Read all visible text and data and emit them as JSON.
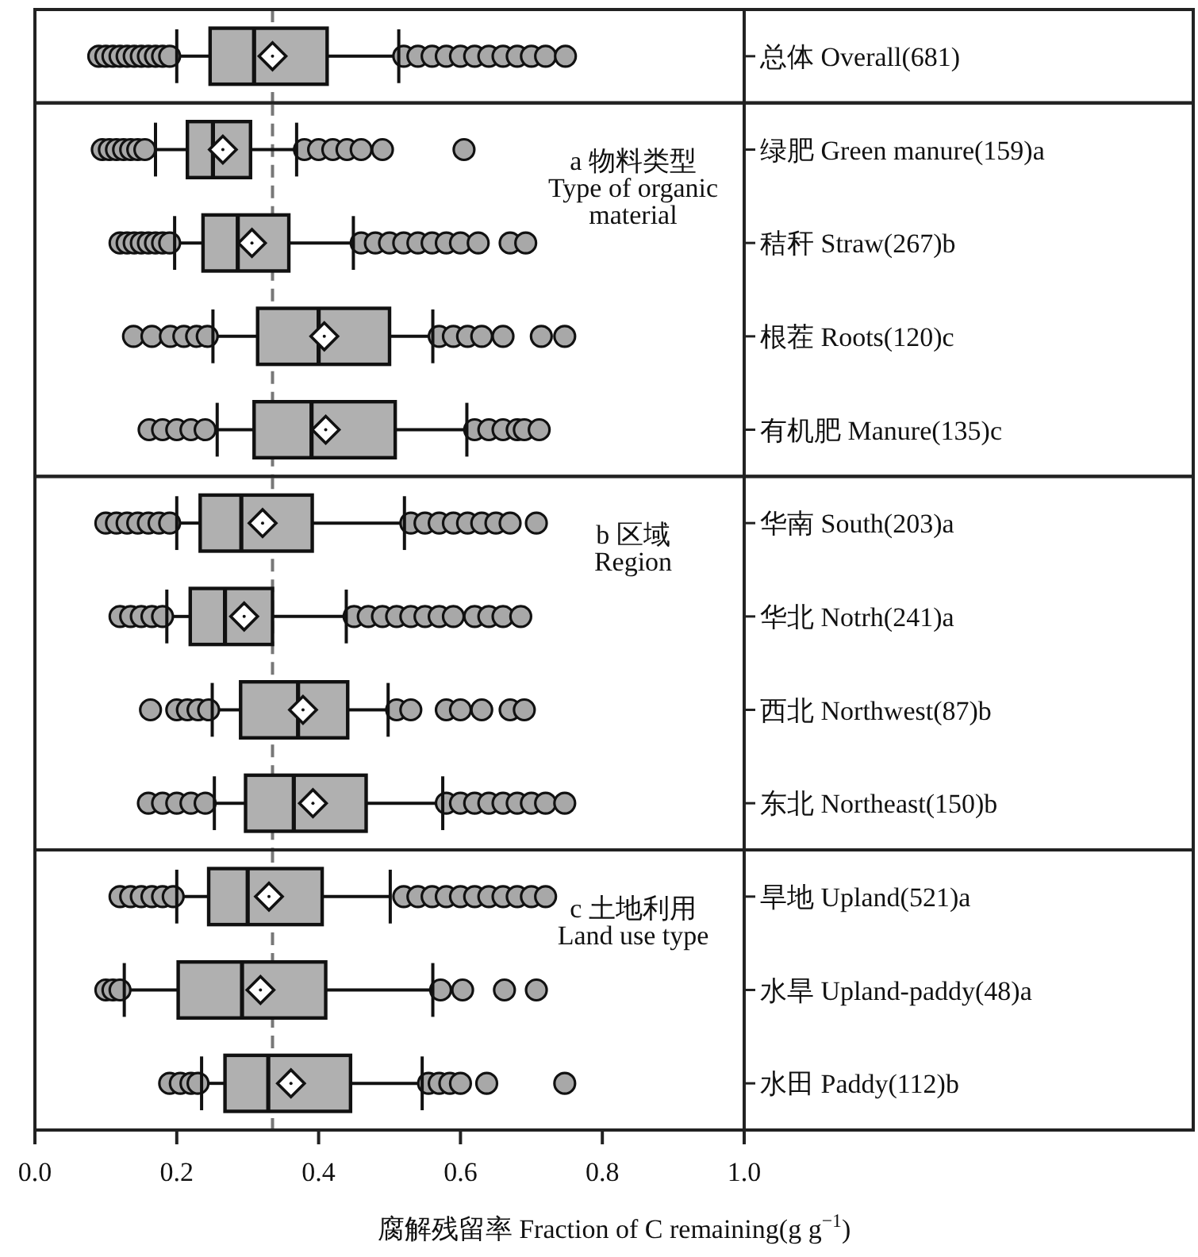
{
  "chart_data": [
    {
      "type": "box",
      "orientation": "horizontal",
      "categories": [
        "总体 Overall(681)"
      ],
      "xlim": [
        0,
        1
      ],
      "tick_labels": "y",
      "ref_lines": [
        {
          "axis": "x",
          "value": 0.335,
          "color": "#777777",
          "line_style": "dashed"
        }
      ],
      "series": [
        {
          "color": "#b0b0b0",
          "boxes": [
            {
              "low": 0.2,
              "q1": 0.247,
              "median": 0.309,
              "q3": 0.412,
              "high": 0.513,
              "mean": 0.335,
              "outliers": [
                0.09,
                0.1,
                0.11,
                0.12,
                0.13,
                0.14,
                0.15,
                0.16,
                0.17,
                0.18,
                0.19,
                0.52,
                0.54,
                0.56,
                0.58,
                0.6,
                0.62,
                0.64,
                0.66,
                0.68,
                0.7,
                0.72,
                0.748
              ]
            }
          ]
        }
      ]
    },
    {
      "type": "box",
      "orientation": "horizontal",
      "categories": [
        "绿肥 Green manure(159)a",
        "秸秆 Straw(267)b",
        "根茬 Roots(120)c",
        "有机肥 Manure(135)c"
      ],
      "xlim": [
        0,
        1
      ],
      "tick_labels": "y",
      "ref_lines": [
        {
          "axis": "x",
          "value": 0.335,
          "color": "#777777",
          "line_style": "dashed"
        }
      ],
      "annotations": [
        "a 物料类型\nType of organic\nmaterial"
      ],
      "series": [
        {
          "color": "#b0b0b0",
          "boxes": [
            {
              "low": 0.17,
              "q1": 0.215,
              "median": 0.251,
              "q3": 0.304,
              "high": 0.369,
              "mean": 0.265,
              "outliers": [
                0.095,
                0.105,
                0.115,
                0.125,
                0.135,
                0.145,
                0.155,
                0.38,
                0.4,
                0.42,
                0.44,
                0.46,
                0.49,
                0.605
              ]
            },
            {
              "low": 0.197,
              "q1": 0.237,
              "median": 0.286,
              "q3": 0.358,
              "high": 0.449,
              "mean": 0.306,
              "outliers": [
                0.12,
                0.13,
                0.14,
                0.15,
                0.16,
                0.17,
                0.18,
                0.19,
                0.46,
                0.48,
                0.5,
                0.52,
                0.54,
                0.56,
                0.58,
                0.6,
                0.625,
                0.67,
                0.692
              ]
            },
            {
              "low": 0.251,
              "q1": 0.314,
              "median": 0.4,
              "q3": 0.5,
              "high": 0.561,
              "mean": 0.408,
              "outliers": [
                0.139,
                0.165,
                0.191,
                0.21,
                0.228,
                0.243,
                0.57,
                0.59,
                0.61,
                0.63,
                0.66,
                0.714,
                0.747
              ]
            },
            {
              "low": 0.257,
              "q1": 0.309,
              "median": 0.39,
              "q3": 0.508,
              "high": 0.609,
              "mean": 0.41,
              "outliers": [
                0.161,
                0.18,
                0.2,
                0.22,
                0.24,
                0.62,
                0.64,
                0.66,
                0.68,
                0.69,
                0.711
              ]
            }
          ]
        }
      ]
    },
    {
      "type": "box",
      "orientation": "horizontal",
      "categories": [
        "华南 South(203)a",
        "华北 Notrh(241)a",
        "西北 Northwest(87)b",
        "东北 Northeast(150)b"
      ],
      "xlim": [
        0,
        1
      ],
      "tick_labels": "y",
      "ref_lines": [
        {
          "axis": "x",
          "value": 0.335,
          "color": "#777777",
          "line_style": "dashed"
        }
      ],
      "annotations": [
        "b 区域\nRegion"
      ],
      "series": [
        {
          "color": "#b0b0b0",
          "boxes": [
            {
              "low": 0.2,
              "q1": 0.233,
              "median": 0.291,
              "q3": 0.391,
              "high": 0.521,
              "mean": 0.321,
              "outliers": [
                0.1,
                0.115,
                0.13,
                0.145,
                0.16,
                0.175,
                0.19,
                0.53,
                0.55,
                0.57,
                0.59,
                0.61,
                0.63,
                0.65,
                0.67,
                0.707
              ]
            },
            {
              "low": 0.186,
              "q1": 0.219,
              "median": 0.268,
              "q3": 0.335,
              "high": 0.439,
              "mean": 0.295,
              "outliers": [
                0.12,
                0.135,
                0.15,
                0.165,
                0.18,
                0.45,
                0.47,
                0.49,
                0.51,
                0.53,
                0.55,
                0.57,
                0.59,
                0.62,
                0.64,
                0.66,
                0.685
              ]
            },
            {
              "low": 0.25,
              "q1": 0.29,
              "median": 0.371,
              "q3": 0.441,
              "high": 0.498,
              "mean": 0.378,
              "outliers": [
                0.163,
                0.2,
                0.215,
                0.23,
                0.245,
                0.51,
                0.53,
                0.58,
                0.6,
                0.63,
                0.67,
                0.69
              ]
            },
            {
              "low": 0.253,
              "q1": 0.297,
              "median": 0.365,
              "q3": 0.467,
              "high": 0.575,
              "mean": 0.392,
              "outliers": [
                0.16,
                0.18,
                0.2,
                0.22,
                0.24,
                0.58,
                0.6,
                0.62,
                0.64,
                0.66,
                0.68,
                0.7,
                0.72,
                0.747
              ]
            }
          ]
        }
      ]
    },
    {
      "type": "box",
      "orientation": "horizontal",
      "categories": [
        "旱地 Upland(521)a",
        "水旱 Upland-paddy(48)a",
        "水田 Paddy(112)b"
      ],
      "xlim": [
        0,
        1
      ],
      "xticks": [
        {
          "value": 0,
          "label": "0.0"
        },
        {
          "value": 0.2,
          "label": "0.2"
        },
        {
          "value": 0.4,
          "label": "0.4"
        },
        {
          "value": 0.6,
          "label": "0.6"
        },
        {
          "value": 0.8,
          "label": "0.8"
        },
        {
          "value": 1,
          "label": "1.0"
        }
      ],
      "xlabel": "腐解残留率 Fraction of C remaining(g g$^{−1}$)",
      "ref_lines": [
        {
          "axis": "x",
          "value": 0.335,
          "color": "#777777",
          "line_style": "dashed"
        }
      ],
      "annotations": [
        "c 土地利用\nLand use type"
      ],
      "series": [
        {
          "color": "#b0b0b0",
          "boxes": [
            {
              "low": 0.2,
              "q1": 0.245,
              "median": 0.3,
              "q3": 0.405,
              "high": 0.501,
              "mean": 0.33,
              "outliers": [
                0.12,
                0.135,
                0.15,
                0.165,
                0.18,
                0.195,
                0.52,
                0.54,
                0.56,
                0.58,
                0.6,
                0.62,
                0.64,
                0.66,
                0.68,
                0.7,
                0.72
              ]
            },
            {
              "low": 0.126,
              "q1": 0.202,
              "median": 0.292,
              "q3": 0.41,
              "high": 0.561,
              "mean": 0.318,
              "outliers": [
                0.1,
                0.11,
                0.12,
                0.572,
                0.603,
                0.662,
                0.707
              ]
            },
            {
              "low": 0.235,
              "q1": 0.268,
              "median": 0.329,
              "q3": 0.445,
              "high": 0.546,
              "mean": 0.361,
              "outliers": [
                0.19,
                0.205,
                0.22,
                0.23,
                0.555,
                0.57,
                0.585,
                0.6,
                0.637,
                0.747
              ]
            }
          ]
        }
      ]
    }
  ]
}
